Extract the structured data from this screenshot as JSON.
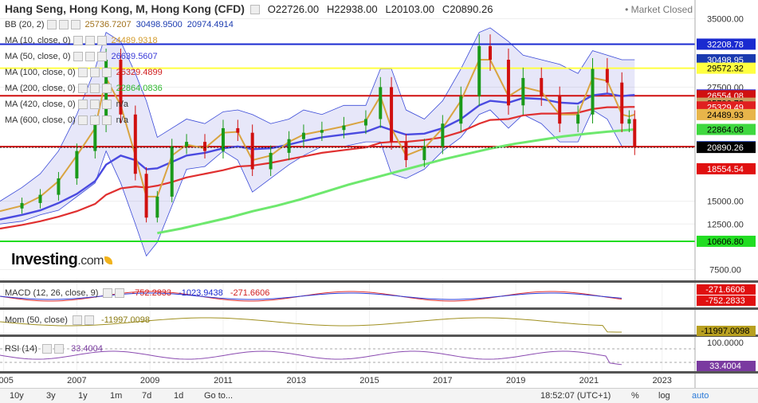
{
  "header": {
    "title": "Hang Seng, Hong Kong, M, Hong Kong (CFD)",
    "open": "O22726.00",
    "high": "H22938.00",
    "low": "L20103.00",
    "close": "C20890.26",
    "status": "Market Closed"
  },
  "indicators": [
    {
      "label": "BB (20, 2)",
      "values": [
        "25736.7207",
        "30498.9500",
        "20974.4914"
      ],
      "colors": [
        "#a0701a",
        "#1a3ab0",
        "#1a3ab0"
      ]
    },
    {
      "label": "MA (10, close, 0)",
      "values": [
        "24489.9318"
      ],
      "colors": [
        "#d39b2b"
      ]
    },
    {
      "label": "MA (50, close, 0)",
      "values": [
        "26639.5607"
      ],
      "colors": [
        "#3a3ad8"
      ]
    },
    {
      "label": "MA (100, close, 0)",
      "values": [
        "25329.4899"
      ],
      "colors": [
        "#d02020"
      ]
    },
    {
      "label": "MA (200, close, 0)",
      "values": [
        "22864.0836"
      ],
      "colors": [
        "#2fb82f"
      ]
    },
    {
      "label": "MA (420, close, 0)",
      "values": [
        "n/a"
      ],
      "colors": [
        "#333333"
      ]
    },
    {
      "label": "MA (600, close, 0)",
      "values": [
        "n/a"
      ],
      "colors": [
        "#333333"
      ]
    }
  ],
  "price_labels": [
    {
      "text": "35000.00",
      "bg": "#ffffff",
      "fg": "#333333",
      "v": 35000
    },
    {
      "text": "32208.78",
      "bg": "#1a2ad0",
      "fg": "#ffffff",
      "v": 32208.78
    },
    {
      "text": "30498.95",
      "bg": "#1a3ab0",
      "fg": "#ffffff",
      "v": 30498.95
    },
    {
      "text": "29572.32",
      "bg": "#ffff40",
      "fg": "#000000",
      "v": 29572.32
    },
    {
      "text": "27500.00",
      "bg": "#ffffff",
      "fg": "#333333",
      "v": 27500
    },
    {
      "text": "26639.56",
      "bg": "#3a3ad8",
      "fg": "#ffffff",
      "v": 26639.56
    },
    {
      "text": "26554.08",
      "bg": "#d01010",
      "fg": "#ffffff",
      "v": 26554.08
    },
    {
      "text": "25736.72",
      "bg": "#c9a060",
      "fg": "#000000",
      "v": 25736.72
    },
    {
      "text": "25329.49",
      "bg": "#e02020",
      "fg": "#ffffff",
      "v": 25329.49
    },
    {
      "text": "24489.93",
      "bg": "#e8b54a",
      "fg": "#000000",
      "v": 24489.93
    },
    {
      "text": "22864.08",
      "bg": "#3fd83f",
      "fg": "#000000",
      "v": 22864.08
    },
    {
      "text": "20974.49",
      "bg": "#1a3ab0",
      "fg": "#ffffff",
      "v": 20974.49
    },
    {
      "text": "20890.26",
      "bg": "#000000",
      "fg": "#ffffff",
      "v": 20890.26
    },
    {
      "text": "18554.54",
      "bg": "#e01010",
      "fg": "#ffffff",
      "v": 18554.54
    },
    {
      "text": "15000.00",
      "bg": "#ffffff",
      "fg": "#333333",
      "v": 15000
    },
    {
      "text": "12500.00",
      "bg": "#ffffff",
      "fg": "#333333",
      "v": 12500
    },
    {
      "text": "10606.80",
      "bg": "#22dd22",
      "fg": "#000000",
      "v": 10606.8
    },
    {
      "text": "7500.00",
      "bg": "#ffffff",
      "fg": "#333333",
      "v": 7500
    }
  ],
  "macd": {
    "label": "MACD (12, 26, close, 9)",
    "values": [
      "-752.2833",
      "-1023.9438",
      "-271.6606"
    ],
    "right_labels": [
      {
        "text": "-271.6606",
        "bg": "#e01010",
        "fg": "#ffffff"
      },
      {
        "text": "-752.2833",
        "bg": "#e01010",
        "fg": "#ffffff"
      }
    ]
  },
  "mom": {
    "label": "Mom (50, close)",
    "value": "-11997.0098",
    "right_label": {
      "text": "-11997.0098",
      "bg": "#b8a020",
      "fg": "#000000"
    }
  },
  "rsi": {
    "label": "RSI (14)",
    "value": "33.4004",
    "right_labels": [
      {
        "text": "100.0000",
        "bg": "#ffffff",
        "fg": "#333333"
      },
      {
        "text": "33.4004",
        "bg": "#7a3aa0",
        "fg": "#ffffff"
      }
    ]
  },
  "logo": {
    "brand": "Investing",
    "suffix": ".com"
  },
  "bottom_bar": {
    "ranges": [
      "10y",
      "3y",
      "1y",
      "1m",
      "7d",
      "1d",
      "Go to..."
    ],
    "time": "18:52:07 (UTC+1)",
    "options": [
      "%",
      "log",
      "auto"
    ]
  },
  "chart_data": {
    "type": "candlestick",
    "title": "Hang Seng, Hong Kong, M, Hong Kong (CFD)",
    "x_ticks": [
      "2005",
      "2007",
      "2009",
      "2011",
      "2013",
      "2015",
      "2017",
      "2019",
      "2021",
      "2023"
    ],
    "y_ticks": [
      35000,
      27500,
      15000,
      12500,
      7500
    ],
    "x_range": [
      2004.9,
      2023.9
    ],
    "y_range": [
      6500,
      36000
    ],
    "close_series": {
      "x": [
        2004.9,
        2005.5,
        2006.0,
        2006.5,
        2007.0,
        2007.5,
        2007.8,
        2008.2,
        2008.6,
        2008.9,
        2009.2,
        2009.6,
        2010.0,
        2010.5,
        2011.0,
        2011.4,
        2011.8,
        2012.3,
        2012.8,
        2013.2,
        2013.7,
        2014.3,
        2014.9,
        2015.3,
        2015.6,
        2016.0,
        2016.5,
        2017.0,
        2017.5,
        2018.0,
        2018.3,
        2018.8,
        2019.2,
        2019.7,
        2020.2,
        2020.7,
        2021.1,
        2021.5,
        2021.9,
        2022.1,
        2022.25
      ],
      "y": [
        14200,
        14800,
        15700,
        17500,
        20500,
        23500,
        30500,
        24500,
        18000,
        13200,
        15500,
        21000,
        21500,
        20500,
        23000,
        22500,
        18500,
        20300,
        21800,
        22500,
        22800,
        23300,
        24000,
        27500,
        21500,
        19500,
        21000,
        23500,
        26500,
        32000,
        30500,
        25500,
        28500,
        26500,
        23500,
        24500,
        29500,
        28000,
        23500,
        24000,
        20890
      ]
    },
    "ma10": [
      13900,
      14500,
      15500,
      17200,
      20000,
      23000,
      28500,
      25500,
      20000,
      15500,
      15500,
      20000,
      21200,
      20800,
      22500,
      22600,
      19500,
      20000,
      21500,
      22300,
      22700,
      23200,
      23800,
      26500,
      23000,
      20000,
      20800,
      23000,
      26000,
      30500,
      30500,
      26500,
      27500,
      27000,
      24500,
      24500,
      28500,
      28200,
      24500,
      24300,
      24489.93
    ],
    "ma50": [
      13000,
      13500,
      14000,
      14800,
      15800,
      17200,
      19000,
      20000,
      19500,
      18500,
      18600,
      19300,
      20000,
      20300,
      20800,
      21000,
      20700,
      20800,
      21200,
      21600,
      22000,
      22300,
      22600,
      23200,
      22800,
      22300,
      22400,
      23000,
      24000,
      25500,
      26000,
      25800,
      26300,
      26200,
      25800,
      25700,
      26600,
      26800,
      26500,
      26600,
      26639.56
    ],
    "ma100": [
      12000,
      12400,
      12800,
      13300,
      13900,
      14700,
      15700,
      16400,
      16600,
      16500,
      16700,
      17100,
      17600,
      18000,
      18400,
      18800,
      18900,
      19200,
      19600,
      19900,
      20300,
      20600,
      20900,
      21400,
      21500,
      21500,
      21700,
      22000,
      22600,
      23500,
      23900,
      24000,
      24400,
      24600,
      24600,
      24700,
      25100,
      25300,
      25300,
      25330,
      25329.49
    ],
    "ma200_start": 2009.2,
    "ma200": [
      11500,
      12000,
      12600,
      13200,
      13900,
      14500,
      15200,
      16000,
      16800,
      17500,
      18200,
      18900,
      19600,
      20200,
      20800,
      21300,
      21700,
      22100,
      22400,
      22650,
      22864.08
    ],
    "bb_upper": [
      15000,
      16500,
      18000,
      20500,
      24500,
      29500,
      33500,
      32500,
      29000,
      26000,
      22000,
      23000,
      24000,
      23500,
      24800,
      25000,
      24500,
      23500,
      24000,
      25000,
      24500,
      25500,
      25500,
      29500,
      29500,
      25000,
      24000,
      26000,
      29500,
      33500,
      34000,
      32500,
      31000,
      30500,
      30000,
      29000,
      31500,
      31000,
      30500,
      30500,
      30498.95
    ],
    "bb_lower": [
      12500,
      12800,
      13500,
      14000,
      15500,
      17000,
      20500,
      17000,
      12500,
      9000,
      10500,
      14500,
      18500,
      18800,
      20500,
      19500,
      16000,
      17500,
      19000,
      20000,
      21000,
      21000,
      21500,
      21500,
      18000,
      17500,
      18500,
      20500,
      22000,
      24500,
      25000,
      23000,
      24500,
      23500,
      21500,
      21500,
      25000,
      24000,
      21000,
      21000,
      20974.49
    ],
    "bb_middle_last": 25736.72,
    "lines": [
      {
        "name": "horizontal",
        "y": 32208.78,
        "color": "#1a2ad0"
      },
      {
        "name": "horizontal",
        "y": 29572.32,
        "color": "#ffff40"
      },
      {
        "name": "horizontal",
        "y": 26554.08,
        "color": "#d01010"
      },
      {
        "name": "horizontal",
        "y": 20974.49,
        "color": "#d01010"
      },
      {
        "name": "horizontal",
        "y": 10606.8,
        "color": "#22dd22"
      }
    ],
    "series_last": {
      "close": 20890.26,
      "ma10": 24489.93,
      "ma50": 26639.56,
      "ma100": 25329.49,
      "ma200": 22864.08,
      "bb_upper": 30498.95,
      "bb_middle": 25736.72,
      "bb_lower": 20974.49
    }
  }
}
